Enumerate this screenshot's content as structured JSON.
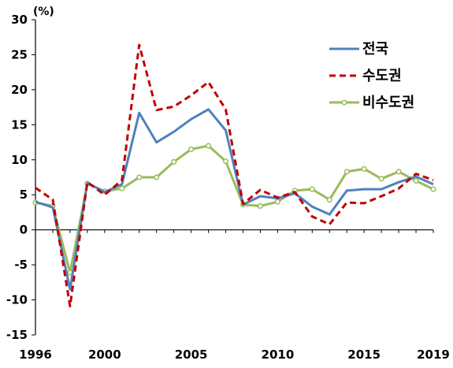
{
  "chart_data": {
    "type": "line",
    "title": "",
    "unit_label": "(%)",
    "xlabel": "",
    "ylabel": "",
    "xlim": [
      1996,
      2019
    ],
    "ylim": [
      -15,
      30
    ],
    "x_ticks": [
      1996,
      2000,
      2005,
      2010,
      2015,
      2019
    ],
    "y_ticks": [
      -15,
      -10,
      -5,
      0,
      5,
      10,
      15,
      20,
      25,
      30
    ],
    "grid": false,
    "legend_position": "top-right",
    "x": [
      1996,
      1997,
      1998,
      1999,
      2000,
      2001,
      2002,
      2003,
      2004,
      2005,
      2006,
      2007,
      2008,
      2009,
      2010,
      2011,
      2012,
      2013,
      2014,
      2015,
      2016,
      2017,
      2018,
      2019
    ],
    "series": [
      {
        "name": "전국",
        "color": "#4f81bd",
        "style": "solid",
        "markers": false,
        "values": [
          4.0,
          3.2,
          -8.5,
          6.7,
          5.4,
          6.5,
          16.7,
          12.5,
          14.0,
          15.8,
          17.2,
          14.2,
          3.6,
          4.8,
          4.5,
          5.2,
          3.3,
          2.2,
          5.6,
          5.8,
          5.8,
          6.8,
          7.6,
          6.5
        ]
      },
      {
        "name": "수도권",
        "color": "#c00000",
        "style": "dashed",
        "markers": false,
        "values": [
          6.0,
          4.3,
          -10.9,
          6.8,
          5.0,
          7.1,
          26.4,
          17.1,
          17.6,
          19.2,
          21.1,
          17.2,
          3.7,
          5.7,
          4.6,
          5.4,
          1.9,
          0.8,
          3.9,
          3.8,
          4.8,
          5.9,
          8.0,
          7.1
        ]
      },
      {
        "name": "비수도권",
        "color": "#9bbb59",
        "style": "solid",
        "markers": true,
        "values": [
          3.9,
          3.4,
          -6.1,
          6.6,
          5.5,
          5.9,
          7.5,
          7.5,
          9.7,
          11.5,
          12.0,
          9.8,
          3.6,
          3.4,
          4.0,
          5.6,
          5.8,
          4.3,
          8.3,
          8.7,
          7.3,
          8.3,
          7.0,
          5.8
        ]
      }
    ]
  }
}
